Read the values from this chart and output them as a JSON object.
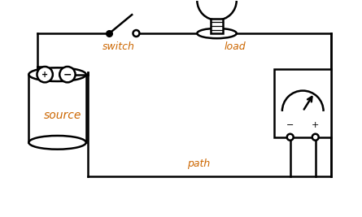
{
  "bg_color": "#ffffff",
  "line_color": "#000000",
  "label_color": "#cc6600",
  "label_source": "source",
  "label_switch": "switch",
  "label_load": "load",
  "label_path": "path",
  "lw": 1.8,
  "fig_w": 4.45,
  "fig_h": 2.67,
  "dpi": 100,
  "xlim": [
    0,
    10
  ],
  "ylim": [
    0,
    6
  ]
}
